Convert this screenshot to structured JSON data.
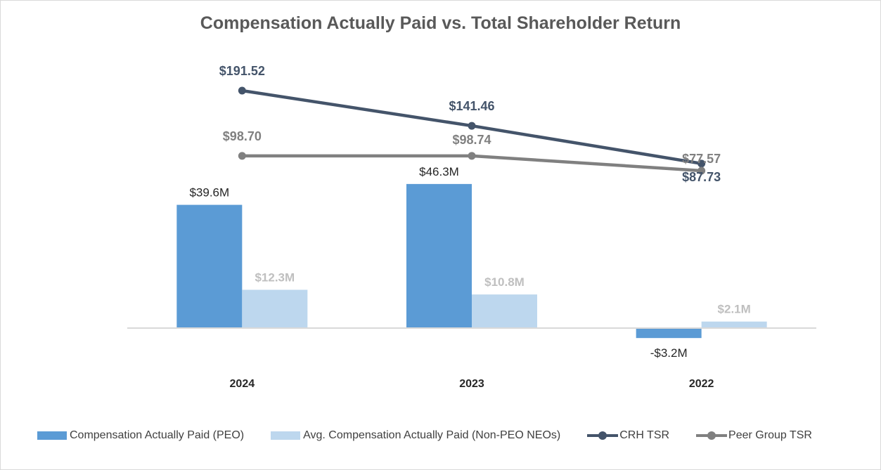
{
  "chart_data": {
    "type": "bar",
    "title": "Compensation Actually Paid vs. Total Shareholder Return",
    "categories": [
      "2024",
      "2023",
      "2022"
    ],
    "bar_series": [
      {
        "name": "Compensation Actually Paid (PEO)",
        "values": [
          39.6,
          46.3,
          -3.2
        ],
        "labels": [
          "$39.6M",
          "$46.3M",
          "-$3.2M"
        ],
        "color": "#5b9bd5"
      },
      {
        "name": "Avg. Compensation Actually Paid (Non-PEO NEOs)",
        "values": [
          12.3,
          10.8,
          2.1
        ],
        "labels": [
          "$12.3M",
          "$10.8M",
          "$2.1M"
        ],
        "color": "#bdd7ee"
      }
    ],
    "line_series": [
      {
        "name": "CRH TSR",
        "values": [
          191.52,
          141.46,
          87.73
        ],
        "labels": [
          "$191.52",
          "$141.46",
          "$87.73"
        ],
        "color": "#44546a"
      },
      {
        "name": "Peer Group TSR",
        "values": [
          98.7,
          98.74,
          77.57
        ],
        "labels": [
          "$98.70",
          "$98.74",
          "$77.57"
        ],
        "color": "#808080"
      }
    ],
    "bar_ylim": [
      -10,
      70
    ],
    "line_ylim": [
      -180,
      260
    ],
    "grid": false,
    "legend_position": "bottom"
  }
}
